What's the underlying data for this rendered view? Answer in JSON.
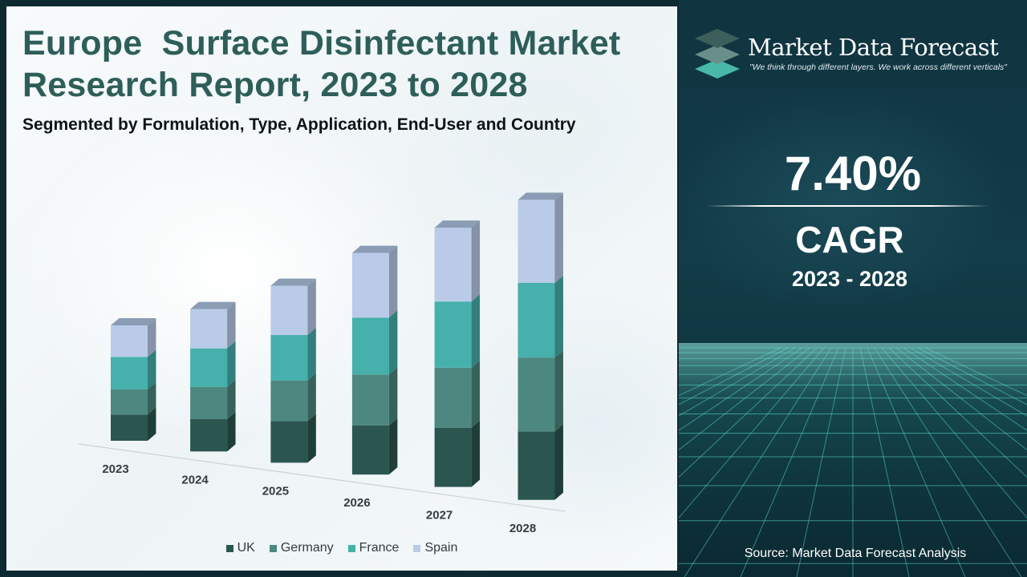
{
  "header": {
    "title_line1": "Europe  Surface Disinfectant Market",
    "title_line2": "Research Report, 2023 to 2028",
    "subtitle": "Segmented by Formulation, Type, Application, End-User and Country"
  },
  "brand": {
    "name": "Market Data Forecast",
    "tagline": "\"We think through different layers. We work across different verticals\""
  },
  "highlight": {
    "cagr_value": "7.40%",
    "cagr_label": "CAGR",
    "period": "2023 - 2028"
  },
  "source": "Source: Market Data Forecast Analysis",
  "colors": {
    "UK": "#2b5650",
    "Germany": "#4d8880",
    "France": "#45b0ac",
    "Spain": "#b9cbe8",
    "title": "#2e5e5a",
    "right_panel_bg": "#123c48"
  },
  "icons": {
    "logo": "layered-diamonds-icon"
  },
  "chart_data": {
    "type": "bar",
    "stacked": true,
    "categories": [
      "2023",
      "2024",
      "2025",
      "2026",
      "2027",
      "2028"
    ],
    "series": [
      {
        "name": "UK",
        "values": [
          34,
          42,
          54,
          64,
          77,
          89
        ]
      },
      {
        "name": "Germany",
        "values": [
          33,
          42,
          53,
          66,
          78,
          96
        ]
      },
      {
        "name": "France",
        "values": [
          42,
          50,
          59,
          74,
          86,
          97
        ]
      },
      {
        "name": "Spain",
        "values": [
          41,
          51,
          64,
          84,
          96,
          108
        ]
      }
    ],
    "title": "",
    "xlabel": "",
    "ylabel": "",
    "ylim": [
      0,
      400
    ],
    "grid": false,
    "legend": "bottom",
    "style": "3d"
  }
}
